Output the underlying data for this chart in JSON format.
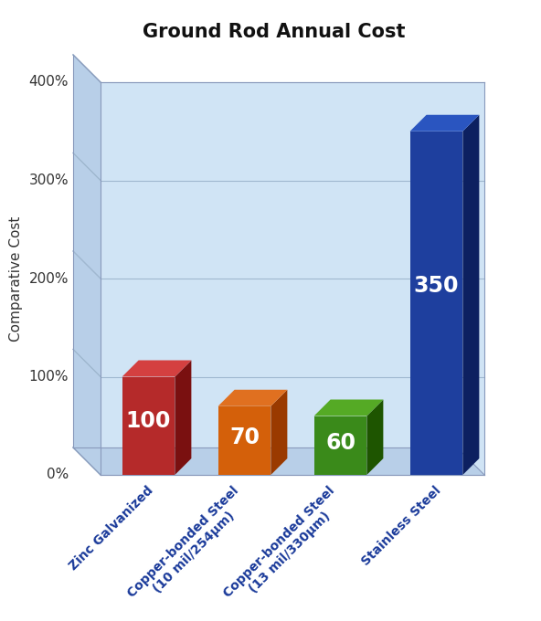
{
  "title": "Ground Rod Annual Cost",
  "ylabel": "Comparative Cost",
  "categories": [
    "Zinc Galvanized",
    "Copper-bonded Steel\n(10 mil/254μm)",
    "Copper-bonded Steel\n(13 mil/330μm)",
    "Stainless Steel"
  ],
  "values": [
    100,
    70,
    60,
    350
  ],
  "bar_colors": [
    "#b52a2a",
    "#d4600a",
    "#3a8a1a",
    "#1e3f9e"
  ],
  "bar_dark_colors": [
    "#7a1010",
    "#9a3a00",
    "#1e5500",
    "#0d2060"
  ],
  "bar_top_colors": [
    "#d44040",
    "#e07020",
    "#55aa25",
    "#2a55c0"
  ],
  "value_labels": [
    "100",
    "70",
    "60",
    "350"
  ],
  "yticks": [
    0,
    100,
    200,
    300,
    400
  ],
  "ytick_labels": [
    "0%",
    "100%",
    "200%",
    "300%",
    "400%"
  ],
  "ylim": [
    0,
    400
  ],
  "wall_color": "#d0e4f5",
  "wall_left_color": "#b8cfe8",
  "floor_color": "#b8cfe8",
  "grid_color": "#a0b8d0",
  "bg_color": "#ffffff",
  "title_fontsize": 15,
  "ylabel_fontsize": 11,
  "tick_fontsize": 11,
  "xtick_fontsize": 10,
  "value_fontsize": 17,
  "xtick_color": "#1a3a9a",
  "ytick_color": "#333333"
}
